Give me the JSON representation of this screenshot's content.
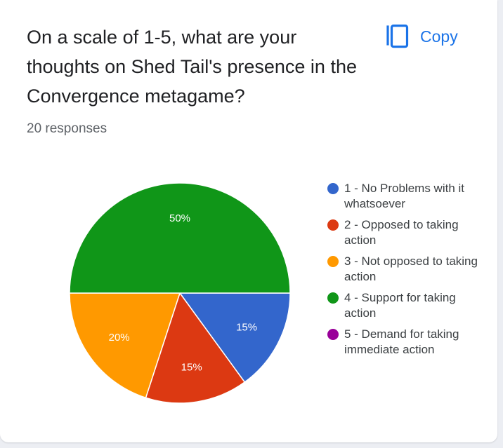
{
  "card": {
    "question": "On a scale of 1-5, what are your thoughts on Shed Tail's presence in the Convergence metagame?",
    "copy_label": "Copy",
    "copy_icon": "copy-icon",
    "responses": "20 responses",
    "accent_color": "#1a73e8"
  },
  "chart_data": {
    "type": "pie",
    "total_responses": 20,
    "legend_position": "right",
    "categories": [
      "1 - No Problems with it whatsoever",
      "2 - Opposed to taking action",
      "3 - Not opposed to taking action",
      "4 - Support for taking action",
      "5 - Demand for taking immediate action"
    ],
    "values": [
      15,
      15,
      20,
      50,
      0
    ],
    "labels": [
      "15%",
      "15%",
      "20%",
      "50%",
      ""
    ],
    "colors": [
      "#3366cc",
      "#dc3912",
      "#ff9900",
      "#109618",
      "#990099"
    ]
  }
}
